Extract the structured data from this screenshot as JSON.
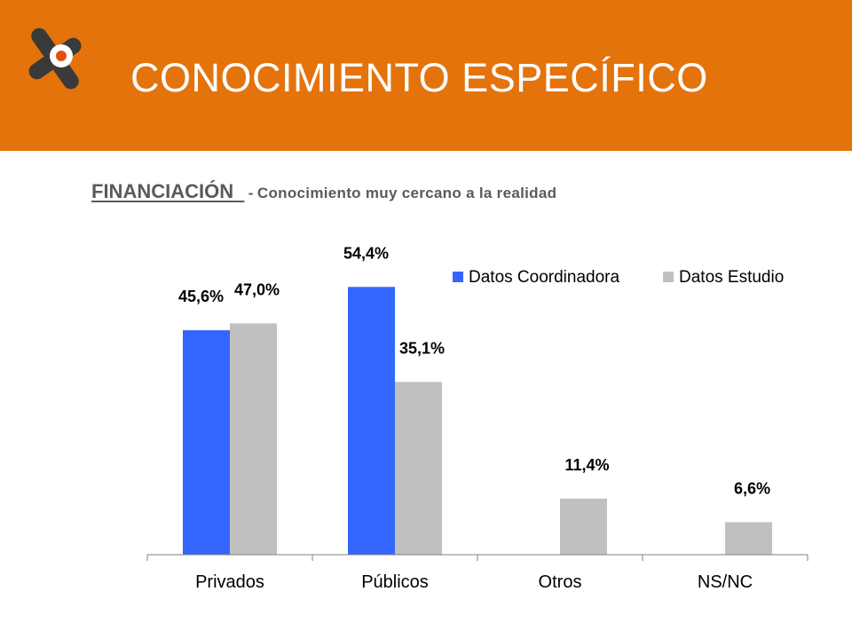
{
  "header": {
    "title": "CONOCIMIENTO ESPECÍFICO",
    "bg_color": "#E4730C",
    "logo_icon": "x-shaped-brand-logo-icon"
  },
  "section": {
    "heading": "FINANCIACIÓN",
    "separator": "-",
    "description": "Conocimiento muy cercano a la realidad"
  },
  "chart_data": {
    "type": "bar",
    "categories": [
      "Privados",
      "Públicos",
      "Otros",
      "NS/NC"
    ],
    "series": [
      {
        "name": "Datos Coordinadora",
        "color": "#3366FF",
        "values": [
          45.6,
          54.4,
          null,
          null
        ],
        "labels": [
          "45,6%",
          "54,4%",
          "",
          ""
        ]
      },
      {
        "name": "Datos Estudio",
        "color": "#C0C0C0",
        "values": [
          47.0,
          35.1,
          11.4,
          6.6
        ],
        "labels": [
          "47,0%",
          "35,1%",
          "11,4%",
          "6,6%"
        ]
      }
    ],
    "ylim": [
      0,
      57.7
    ],
    "legend_position": "top-right",
    "grid": false
  }
}
